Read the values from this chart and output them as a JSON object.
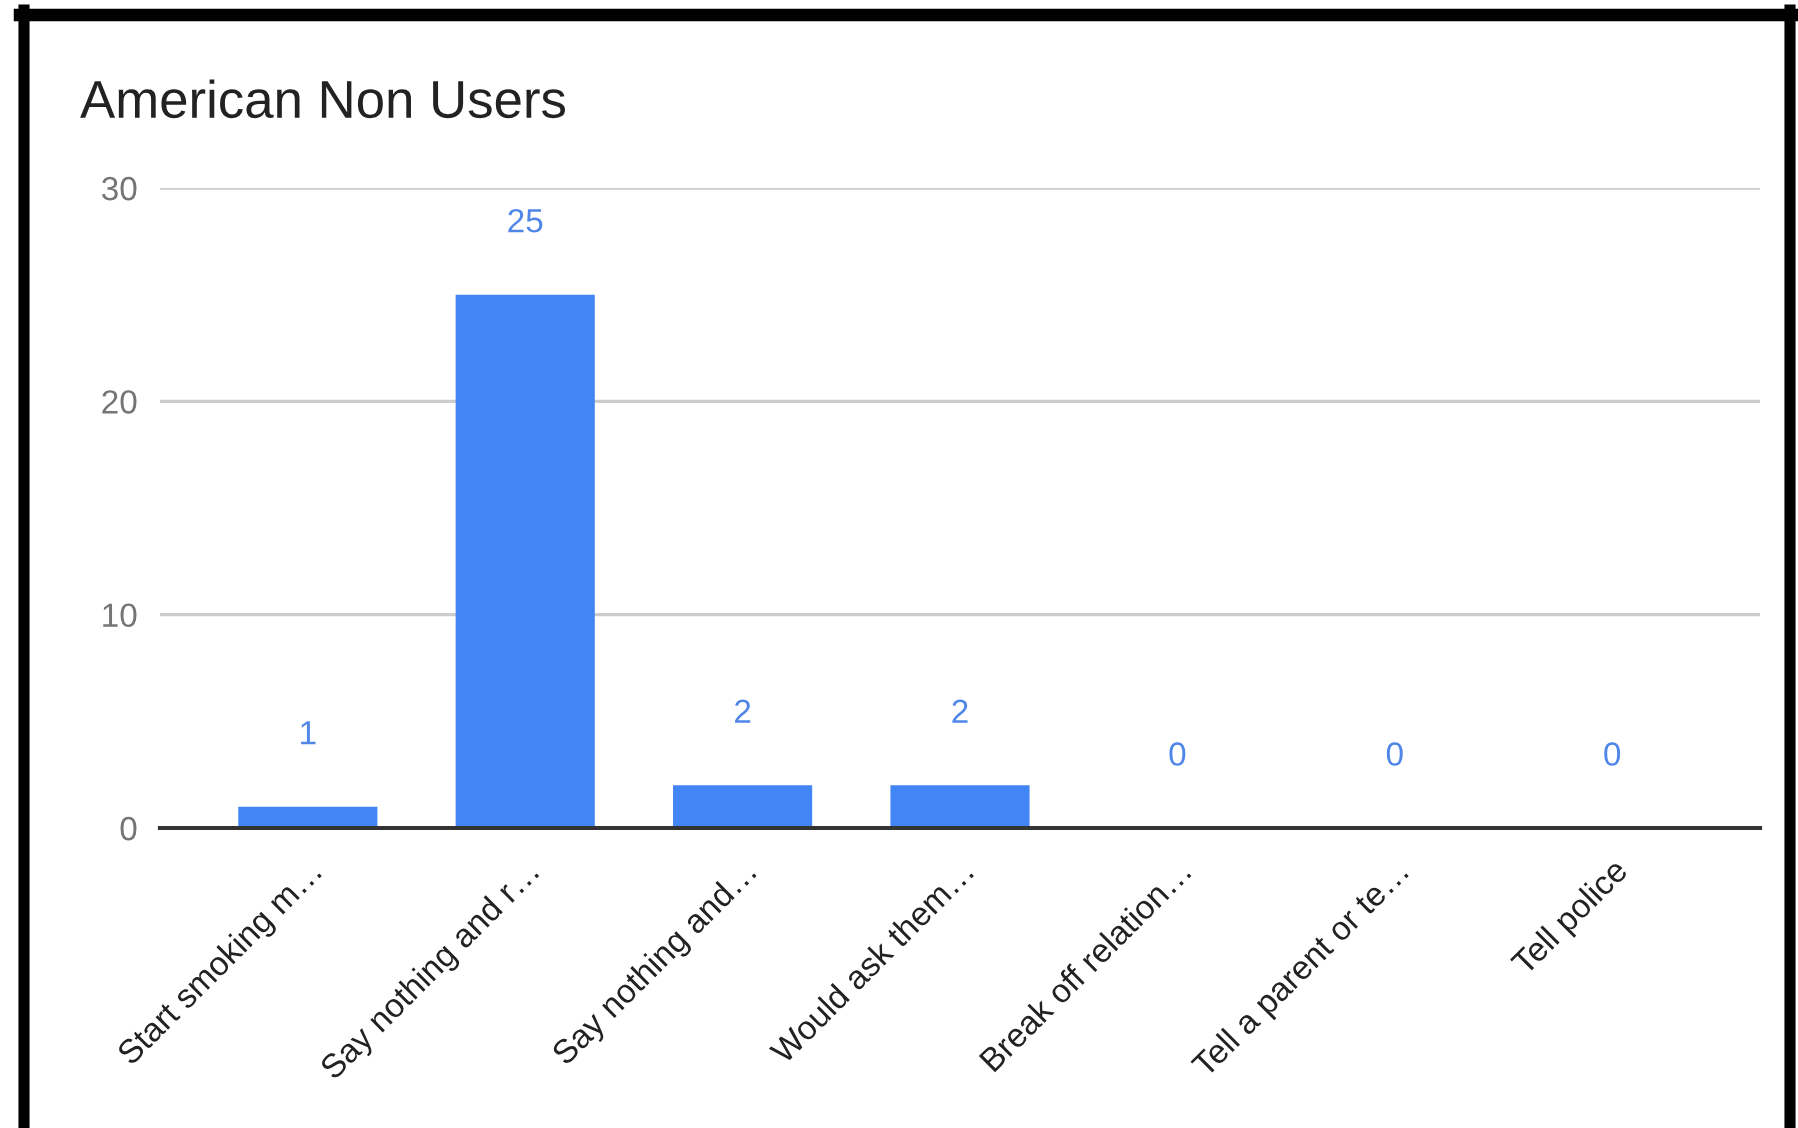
{
  "chart_data": {
    "type": "bar",
    "title": "American Non Users",
    "categories": [
      "Start smoking m…",
      "Say nothing and r…",
      "Say nothing and…",
      "Would ask them…",
      "Break off relation…",
      "Tell a parent or te…",
      "Tell police"
    ],
    "values": [
      1,
      25,
      2,
      2,
      0,
      0,
      0
    ],
    "color": "#4285f4",
    "ylim": [
      0,
      30
    ],
    "yticks": [
      0,
      10,
      20,
      30
    ],
    "grid": "y",
    "data_labels": true
  }
}
